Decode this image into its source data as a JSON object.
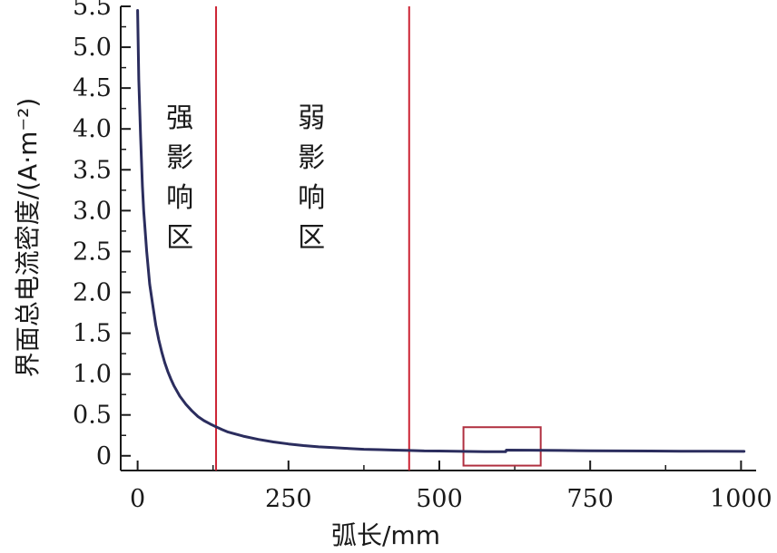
{
  "chart_data": {
    "type": "line",
    "xlabel": "弧长/mm",
    "ylabel": "界面总电流密度/(A·m⁻²)",
    "xlim": [
      -28,
      1025
    ],
    "ylim": [
      -0.18,
      5.5
    ],
    "x_ticks": [
      0,
      250,
      500,
      750,
      1000
    ],
    "x_tick_labels": [
      "0",
      "250",
      "500",
      "750",
      "1000"
    ],
    "y_ticks": [
      0,
      0.5,
      1.0,
      1.5,
      2.0,
      2.5,
      3.0,
      3.5,
      4.0,
      4.5,
      5.0,
      5.5
    ],
    "y_tick_labels": [
      "0",
      "0.5",
      "1.0",
      "1.5",
      "2.0",
      "2.5",
      "3.0",
      "3.5",
      "4.0",
      "4.5",
      "5.0",
      "5.5"
    ],
    "grid": false,
    "series": [
      {
        "color": "#2b2d5e",
        "x": [
          0,
          2,
          5,
          8,
          10,
          15,
          20,
          25,
          30,
          35,
          40,
          45,
          50,
          55,
          60,
          70,
          80,
          90,
          100,
          110,
          120,
          130,
          140,
          150,
          175,
          200,
          225,
          250,
          275,
          300,
          325,
          350,
          375,
          400,
          425,
          450,
          475,
          500,
          525,
          550,
          575,
          600,
          610,
          611,
          650,
          700,
          750,
          800,
          850,
          900,
          950,
          1005
        ],
        "y": [
          5.45,
          4.6,
          3.9,
          3.3,
          3.0,
          2.5,
          2.1,
          1.85,
          1.6,
          1.42,
          1.27,
          1.14,
          1.03,
          0.94,
          0.86,
          0.73,
          0.63,
          0.55,
          0.48,
          0.43,
          0.39,
          0.355,
          0.32,
          0.29,
          0.24,
          0.2,
          0.17,
          0.145,
          0.125,
          0.11,
          0.1,
          0.09,
          0.08,
          0.075,
          0.07,
          0.065,
          0.06,
          0.058,
          0.055,
          0.053,
          0.051,
          0.05,
          0.05,
          0.07,
          0.068,
          0.065,
          0.062,
          0.06,
          0.058,
          0.056,
          0.055,
          0.054
        ]
      }
    ],
    "reference_lines": [
      {
        "x": 130,
        "color": "#cc2233"
      },
      {
        "x": 450,
        "color": "#cc2233"
      }
    ],
    "regions": [
      {
        "label": "强影响区",
        "x": 70
      },
      {
        "label": "弱影响区",
        "x": 288
      }
    ],
    "highlight_box": {
      "x0": 540,
      "x1": 668,
      "y0": -0.12,
      "y1": 0.35,
      "color": "#b03040"
    }
  }
}
